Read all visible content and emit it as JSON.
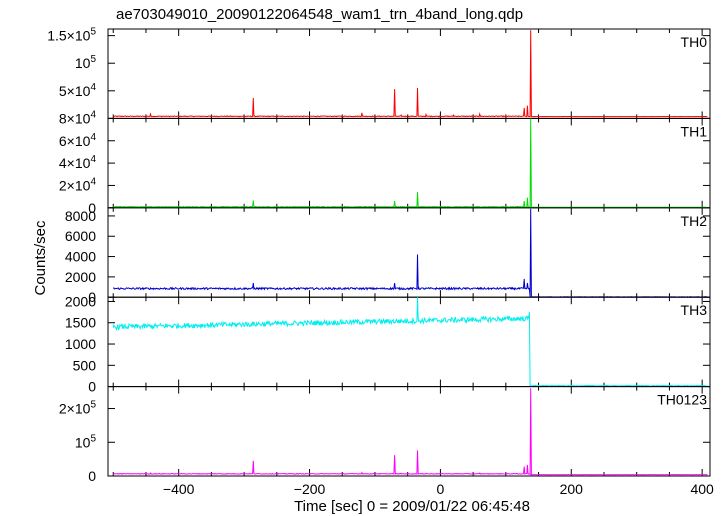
{
  "chart_data": {
    "type": "line",
    "title": "ae703049010_20090122064548_wam1_trn_4band_long.qdp",
    "xlabel": "Time [sec] 0 = 2009/01/22 06:45:48",
    "ylabel": "Counts/sec",
    "xlim": [
      -508,
      412
    ],
    "xticks": [
      -400,
      -200,
      0,
      200,
      400
    ],
    "xtick_labels": [
      "−400",
      "−200",
      "0",
      "200",
      "400"
    ],
    "panels": [
      {
        "name": "TH0",
        "color": "#ff0000",
        "ylim": [
          0,
          162000
        ],
        "yticks": [
          {
            "v": 50000,
            "base": "5×10",
            "exp": "4",
            "plain": ""
          },
          {
            "v": 100000,
            "base": "10",
            "exp": "5",
            "plain": ""
          },
          {
            "v": 150000,
            "base": "1.5×10",
            "exp": "5",
            "plain": ""
          }
        ],
        "baseline": {
          "pre": 3800,
          "post": 3300,
          "noise": 700
        },
        "spikes": [
          [
            -443,
            8000
          ],
          [
            -286,
            37000
          ],
          [
            -120,
            10000
          ],
          [
            -70,
            53000
          ],
          [
            -60,
            6000
          ],
          [
            -35,
            55000
          ],
          [
            -22,
            7000
          ],
          [
            20,
            6000
          ],
          [
            60,
            8000
          ],
          [
            100,
            5000
          ],
          [
            128,
            19000
          ],
          [
            133,
            23000
          ],
          [
            138,
            160000
          ]
        ]
      },
      {
        "name": "TH1",
        "color": "#00dd00",
        "ylim": [
          0,
          80000
        ],
        "yticks": [
          {
            "v": 0,
            "base": "",
            "exp": "",
            "plain": "0"
          },
          {
            "v": 20000,
            "base": "2×10",
            "exp": "4",
            "plain": ""
          },
          {
            "v": 40000,
            "base": "4×10",
            "exp": "4",
            "plain": ""
          },
          {
            "v": 60000,
            "base": "6×10",
            "exp": "4",
            "plain": ""
          },
          {
            "v": 80000,
            "base": "8×10",
            "exp": "4",
            "plain": ""
          }
        ],
        "baseline": {
          "pre": 900,
          "post": 500,
          "noise": 300
        },
        "spikes": [
          [
            -286,
            6500
          ],
          [
            -70,
            6000
          ],
          [
            -35,
            14000
          ],
          [
            128,
            6000
          ],
          [
            133,
            9000
          ],
          [
            138,
            80000
          ]
        ]
      },
      {
        "name": "TH2",
        "color": "#0000cc",
        "ylim": [
          0,
          8800
        ],
        "yticks": [
          {
            "v": 0,
            "base": "",
            "exp": "",
            "plain": "0"
          },
          {
            "v": 2000,
            "base": "",
            "exp": "",
            "plain": "2000"
          },
          {
            "v": 4000,
            "base": "",
            "exp": "",
            "plain": "4000"
          },
          {
            "v": 6000,
            "base": "",
            "exp": "",
            "plain": "6000"
          },
          {
            "v": 8000,
            "base": "",
            "exp": "",
            "plain": "8000"
          }
        ],
        "baseline": {
          "pre": 850,
          "post": 30,
          "noise": 90
        },
        "spikes": [
          [
            -286,
            1400
          ],
          [
            -70,
            1400
          ],
          [
            -35,
            4200
          ],
          [
            128,
            1800
          ],
          [
            133,
            1400
          ],
          [
            138,
            8700
          ]
        ]
      },
      {
        "name": "TH3",
        "color": "#00eeee",
        "ylim": [
          0,
          2100
        ],
        "yticks": [
          {
            "v": 0,
            "base": "",
            "exp": "",
            "plain": "0"
          },
          {
            "v": 500,
            "base": "",
            "exp": "",
            "plain": "500"
          },
          {
            "v": 1000,
            "base": "",
            "exp": "",
            "plain": "1000"
          },
          {
            "v": 1500,
            "base": "",
            "exp": "",
            "plain": "1500"
          },
          {
            "v": 2000,
            "base": "",
            "exp": "",
            "plain": "2000"
          }
        ],
        "baseline": {
          "pre_start": 1400,
          "pre_end": 1600,
          "post": 20,
          "noise": 60
        },
        "spikes": [
          [
            -35,
            2100
          ],
          [
            136,
            1750
          ]
        ]
      },
      {
        "name": "TH0123",
        "color": "#ff00ff",
        "ylim": [
          0,
          265000
        ],
        "yticks": [
          {
            "v": 0,
            "base": "",
            "exp": "",
            "plain": "0"
          },
          {
            "v": 100000,
            "base": "10",
            "exp": "5",
            "plain": ""
          },
          {
            "v": 200000,
            "base": "2×10",
            "exp": "5",
            "plain": ""
          }
        ],
        "baseline": {
          "pre": 6500,
          "post": 4000,
          "noise": 900
        },
        "spikes": [
          [
            -443,
            9000
          ],
          [
            -286,
            45000
          ],
          [
            -120,
            10000
          ],
          [
            -70,
            62000
          ],
          [
            -60,
            8000
          ],
          [
            -35,
            76000
          ],
          [
            -22,
            8000
          ],
          [
            60,
            9000
          ],
          [
            128,
            28000
          ],
          [
            133,
            33000
          ],
          [
            138,
            260000
          ]
        ]
      }
    ]
  }
}
